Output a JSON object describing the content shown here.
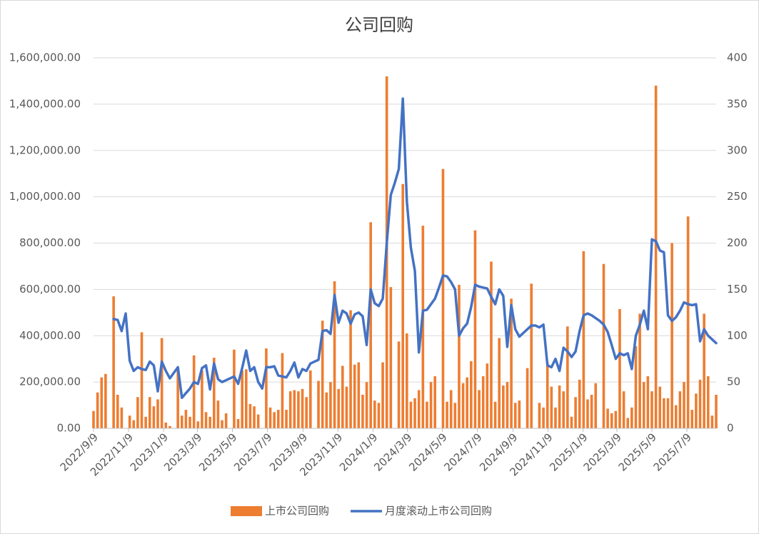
{
  "chart_data": {
    "type": "bar-line",
    "title": "公司回购",
    "x": [
      "2022/9/9",
      "2022/9/16",
      "2022/9/23",
      "2022/9/30",
      "2022/10/7",
      "2022/10/14",
      "2022/10/21",
      "2022/10/28",
      "2022/11/4",
      "2022/11/11",
      "2022/11/18",
      "2022/11/25",
      "2022/12/2",
      "2022/12/9",
      "2022/12/16",
      "2022/12/23",
      "2022/12/30",
      "2023/1/6",
      "2023/1/13",
      "2023/1/20",
      "2023/1/27",
      "2023/2/3",
      "2023/2/10",
      "2023/2/17",
      "2023/2/24",
      "2023/3/3",
      "2023/3/10",
      "2023/3/17",
      "2023/3/24",
      "2023/3/31",
      "2023/4/7",
      "2023/4/14",
      "2023/4/21",
      "2023/4/28",
      "2023/5/5",
      "2023/5/12",
      "2023/5/19",
      "2023/5/26",
      "2023/6/2",
      "2023/6/9",
      "2023/6/16",
      "2023/6/23",
      "2023/6/30",
      "2023/7/7",
      "2023/7/14",
      "2023/7/21",
      "2023/7/28",
      "2023/8/4",
      "2023/8/11",
      "2023/8/18",
      "2023/8/25",
      "2023/9/1",
      "2023/9/8",
      "2023/9/15",
      "2023/9/22",
      "2023/9/29",
      "2023/10/6",
      "2023/10/13",
      "2023/10/20",
      "2023/10/27",
      "2023/11/3",
      "2023/11/10",
      "2023/11/17",
      "2023/11/24",
      "2023/12/1",
      "2023/12/8",
      "2023/12/15",
      "2023/12/22",
      "2023/12/29",
      "2024/1/5",
      "2024/1/12",
      "2024/1/19",
      "2024/1/26",
      "2024/2/2",
      "2024/2/9",
      "2024/2/16",
      "2024/2/23",
      "2024/3/1",
      "2024/3/8",
      "2024/3/15",
      "2024/3/22",
      "2024/3/29",
      "2024/4/5",
      "2024/4/12",
      "2024/4/19",
      "2024/4/26",
      "2024/5/3",
      "2024/5/10",
      "2024/5/17",
      "2024/5/24",
      "2024/5/31",
      "2024/6/7",
      "2024/6/14",
      "2024/6/21",
      "2024/6/28",
      "2024/7/5",
      "2024/7/12",
      "2024/7/19",
      "2024/7/26",
      "2024/8/2",
      "2024/8/9",
      "2024/8/16",
      "2024/8/23",
      "2024/8/30",
      "2024/9/6",
      "2024/9/13",
      "2024/9/20",
      "2024/9/27",
      "2024/10/4",
      "2024/10/11",
      "2024/10/18",
      "2024/10/25",
      "2024/11/1",
      "2024/11/8",
      "2024/11/15",
      "2024/11/22",
      "2024/11/29",
      "2024/12/6",
      "2024/12/13",
      "2024/12/20",
      "2024/12/27",
      "2025/1/3",
      "2025/1/10",
      "2025/1/17",
      "2025/1/24",
      "2025/1/31",
      "2025/2/7",
      "2025/2/14",
      "2025/2/21",
      "2025/2/28",
      "2025/3/7",
      "2025/3/14",
      "2025/3/21",
      "2025/3/28",
      "2025/4/4",
      "2025/4/11",
      "2025/4/18",
      "2025/4/25",
      "2025/5/2",
      "2025/5/9",
      "2025/5/16",
      "2025/5/23",
      "2025/5/30",
      "2025/6/6",
      "2025/6/13",
      "2025/6/20",
      "2025/6/27",
      "2025/7/4",
      "2025/7/11",
      "2025/7/18",
      "2025/7/25",
      "2025/8/1",
      "2025/8/8",
      "2025/8/15",
      "2025/8/22",
      "2025/8/29"
    ],
    "xlim": [
      "2022/9/9",
      "2025/8/29"
    ],
    "xticks": [
      "2022/9/9",
      "2022/11/9",
      "2023/1/9",
      "2023/3/9",
      "2023/5/9",
      "2023/7/9",
      "2023/9/9",
      "2023/11/9",
      "2024/1/9",
      "2024/3/9",
      "2024/5/9",
      "2024/7/9",
      "2024/9/9",
      "2024/11/9",
      "2025/1/9",
      "2025/3/9",
      "2025/5/9",
      "2025/7/9"
    ],
    "ylim": [
      0,
      1600000
    ],
    "yticks": [
      {
        "value": 0,
        "label": "0.00"
      },
      {
        "value": 200000,
        "label": "200,000.00"
      },
      {
        "value": 400000,
        "label": "400,000.00"
      },
      {
        "value": 600000,
        "label": "600,000.00"
      },
      {
        "value": 800000,
        "label": "800,000.00"
      },
      {
        "value": 1000000,
        "label": "1,000,000.00"
      },
      {
        "value": 1200000,
        "label": "1,200,000.00"
      },
      {
        "value": 1400000,
        "label": "1,400,000.00"
      },
      {
        "value": 1600000,
        "label": "1,600,000.00"
      }
    ],
    "y2lim": [
      0,
      400
    ],
    "y2ticks": [
      0,
      50,
      100,
      150,
      200,
      250,
      300,
      350,
      400
    ],
    "grid": true,
    "legend": "bottom",
    "series": [
      {
        "name": "上市公司回购",
        "type": "bar",
        "color": "#ed7d31",
        "values": [
          75000,
          155000,
          220000,
          235000,
          0,
          570000,
          145000,
          90000,
          0,
          55000,
          35000,
          135000,
          415000,
          50000,
          135000,
          95000,
          125000,
          390000,
          25000,
          10000,
          0,
          260000,
          55000,
          80000,
          50000,
          315000,
          30000,
          250000,
          70000,
          50000,
          305000,
          120000,
          35000,
          65000,
          0,
          340000,
          40000,
          250000,
          255000,
          105000,
          95000,
          60000,
          0,
          345000,
          90000,
          70000,
          80000,
          325000,
          80000,
          160000,
          165000,
          160000,
          170000,
          135000,
          250000,
          0,
          205000,
          465000,
          155000,
          200000,
          635000,
          170000,
          270000,
          180000,
          510000,
          275000,
          285000,
          145000,
          200000,
          890000,
          120000,
          110000,
          285000,
          1520000,
          610000,
          0,
          375000,
          1055000,
          410000,
          115000,
          130000,
          165000,
          875000,
          115000,
          200000,
          225000,
          0,
          1120000,
          115000,
          165000,
          110000,
          620000,
          195000,
          220000,
          290000,
          855000,
          165000,
          225000,
          280000,
          720000,
          115000,
          390000,
          185000,
          200000,
          560000,
          110000,
          120000,
          0,
          260000,
          625000,
          0,
          110000,
          90000,
          285000,
          180000,
          90000,
          185000,
          160000,
          440000,
          50000,
          135000,
          210000,
          765000,
          125000,
          145000,
          195000,
          0,
          710000,
          85000,
          65000,
          75000,
          515000,
          160000,
          45000,
          90000,
          355000,
          495000,
          200000,
          225000,
          160000,
          1480000,
          180000,
          130000,
          130000,
          800000,
          100000,
          160000,
          200000,
          915000,
          80000,
          150000,
          210000,
          495000,
          225000,
          55000,
          145000
        ]
      },
      {
        "name": "月度滚动上市公司回购",
        "type": "line",
        "axis": "y2",
        "color": "#4472c4",
        "values": [
          null,
          null,
          null,
          null,
          null,
          118,
          117,
          105,
          124,
          73,
          62,
          66,
          64,
          63,
          72,
          68,
          40,
          72,
          62,
          54,
          60,
          66,
          33,
          38,
          43,
          50,
          48,
          65,
          68,
          42,
          70,
          53,
          50,
          52,
          54,
          56,
          48,
          65,
          84,
          62,
          66,
          50,
          43,
          66,
          66,
          67,
          57,
          56,
          55,
          62,
          71,
          55,
          64,
          62,
          70,
          72,
          74,
          105,
          106,
          102,
          144,
          114,
          127,
          124,
          113,
          123,
          125,
          121,
          90,
          150,
          135,
          132,
          140,
          200,
          252,
          265,
          280,
          356,
          245,
          195,
          170,
          82,
          127,
          128,
          134,
          140,
          152,
          165,
          164,
          158,
          150,
          100,
          108,
          113,
          131,
          155,
          153,
          152,
          151,
          142,
          134,
          150,
          143,
          88,
          133,
          107,
          99,
          103,
          107,
          111,
          111,
          109,
          112,
          68,
          66,
          75,
          62,
          87,
          83,
          77,
          83,
          105,
          122,
          124,
          122,
          119,
          116,
          112,
          104,
          90,
          75,
          81,
          79,
          81,
          64,
          100,
          112,
          127,
          107,
          204,
          202,
          192,
          190,
          122,
          116,
          120,
          127,
          136,
          134,
          133,
          134,
          94,
          107,
          100,
          96,
          92
        ]
      }
    ]
  }
}
